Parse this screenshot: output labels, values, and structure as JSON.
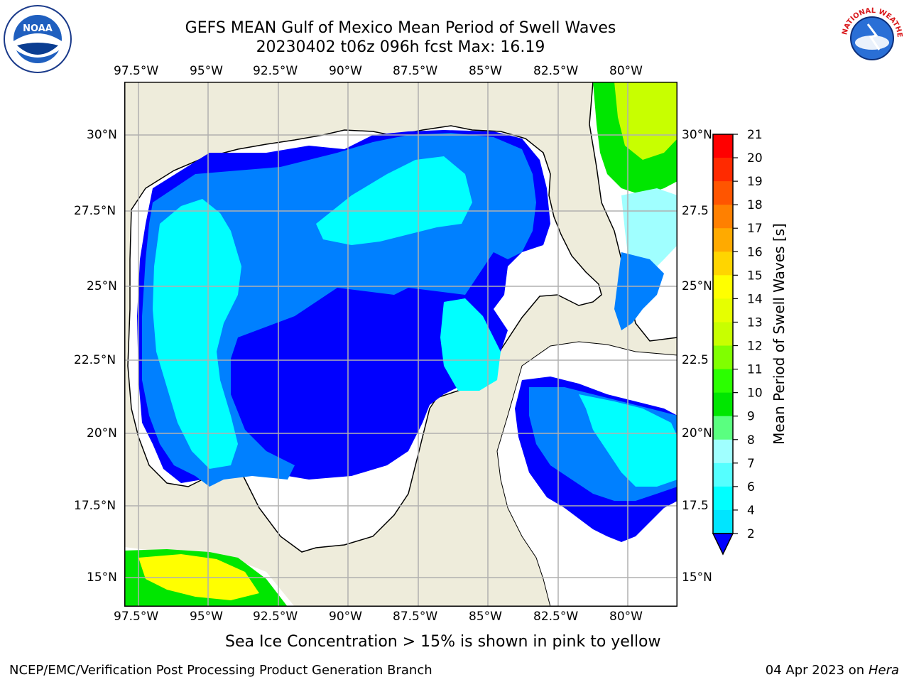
{
  "title": {
    "line1": "GEFS MEAN Gulf of Mexico Mean Period of Swell Waves",
    "line2": "20230402 t06z 096h fcst   Max: 16.19"
  },
  "map": {
    "lon_ticks": [
      "97.5°W",
      "95°W",
      "92.5°W",
      "90°W",
      "87.5°W",
      "85°W",
      "82.5°W",
      "80°W"
    ],
    "lat_ticks_left": [
      "30°N",
      "27.5°N",
      "25°N",
      "22.5°N",
      "20°N",
      "17.5°N",
      "15°N"
    ],
    "lat_ticks_right": [
      "30°N",
      "27.5",
      "25°N",
      "22.5",
      "20°N",
      "17.5",
      "15°N"
    ],
    "land_color": "#eeecdb",
    "grid_color": "#b0b0b0"
  },
  "colorbar": {
    "label": "Mean Period of Swell Waves [s]",
    "ticks": [
      "21",
      "20",
      "19",
      "18",
      "17",
      "16",
      "15",
      "14",
      "13",
      "12",
      "11",
      "10",
      "9",
      "8",
      "7",
      "6",
      "4",
      "2"
    ],
    "colors": [
      "#ff0000",
      "#ff2a00",
      "#ff5500",
      "#ff8000",
      "#ffaa00",
      "#ffd500",
      "#ffff00",
      "#e6ff00",
      "#c8ff00",
      "#80ff00",
      "#2bff00",
      "#00e600",
      "#5aff80",
      "#a0ffff",
      "#55ffff",
      "#00ffff",
      "#00e5ff",
      "#0080ff",
      "#0000ff"
    ]
  },
  "logos": {
    "noaa_text": "NOAA",
    "nws_text": "NATIONAL WEATHER SERVICE"
  },
  "note": "Sea Ice Concentration > 15% is shown in pink to yellow",
  "footer": {
    "left": "NCEP/EMC/Verification Post Processing Product Generation Branch",
    "date": "04 Apr 2023 on ",
    "machine": "Hera"
  }
}
